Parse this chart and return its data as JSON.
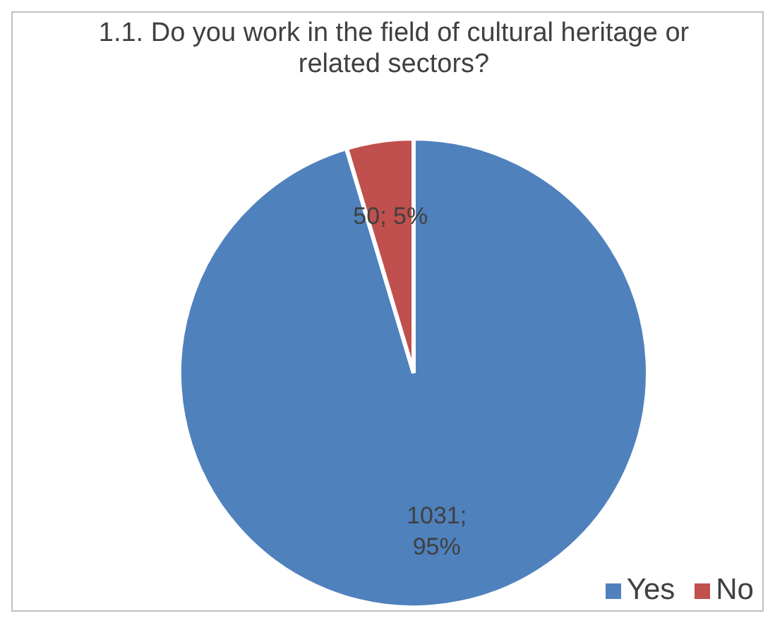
{
  "chart_data": {
    "type": "pie",
    "title": "1.1. Do you work in the field of cultural heritage or related sectors?",
    "categories": [
      "Yes",
      "No"
    ],
    "values": [
      1031,
      50
    ],
    "colors": [
      "#4f81bd",
      "#c0504d"
    ],
    "value_labels": [
      "1031;\n95%",
      "50; 5%"
    ],
    "legend": "bottom right"
  }
}
